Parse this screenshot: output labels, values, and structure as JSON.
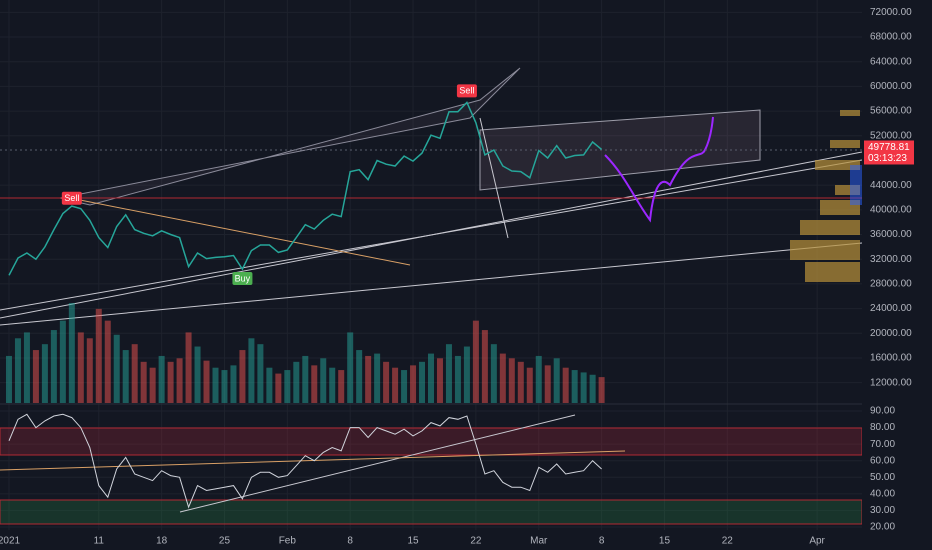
{
  "chart_data": {
    "type": "line",
    "x": [
      0,
      1,
      2,
      3,
      4,
      5,
      6,
      7,
      8,
      9,
      10,
      11,
      12,
      13,
      14,
      15,
      16,
      17,
      18,
      19,
      20,
      21,
      22,
      23,
      24,
      25,
      26,
      27,
      28,
      29,
      30,
      31,
      32,
      33,
      34,
      35,
      36,
      37,
      38,
      39,
      40,
      41,
      42,
      43,
      44,
      45,
      46,
      47,
      48,
      49,
      50,
      51,
      52,
      53,
      54,
      55,
      56,
      57,
      58,
      59,
      60,
      61,
      62,
      63,
      64,
      65,
      66
    ],
    "values": [
      29400,
      32200,
      33000,
      32000,
      34000,
      36800,
      39400,
      40600,
      40200,
      38300,
      35500,
      33900,
      37300,
      39200,
      36800,
      36200,
      35800,
      36600,
      36000,
      35500,
      30800,
      33000,
      32100,
      32300,
      32400,
      32600,
      30400,
      33400,
      34300,
      34300,
      33100,
      33500,
      35500,
      37600,
      36900,
      38300,
      39300,
      38900,
      46200,
      46500,
      44900,
      48000,
      47400,
      47100,
      48700,
      47900,
      49200,
      52100,
      51600,
      55900,
      55900,
      57400,
      54100,
      48900,
      49700,
      47100,
      46300,
      46200,
      45200,
      49600,
      48400,
      50400,
      48400,
      48800,
      48900,
      51000,
      49800
    ],
    "volume": [
      40,
      55,
      60,
      45,
      50,
      62,
      70,
      85,
      60,
      55,
      80,
      70,
      58,
      45,
      50,
      35,
      30,
      40,
      35,
      38,
      60,
      48,
      36,
      30,
      28,
      32,
      45,
      55,
      50,
      30,
      25,
      28,
      35,
      40,
      32,
      38,
      30,
      28,
      60,
      45,
      40,
      42,
      35,
      30,
      28,
      32,
      35,
      42,
      38,
      50,
      40,
      48,
      70,
      62,
      50,
      42,
      38,
      35,
      30,
      40,
      32,
      38,
      30,
      28,
      26,
      24,
      22
    ],
    "color": "#26a69a",
    "xlim": [
      -1,
      95
    ],
    "xticks": [
      {
        "value": 0,
        "label": "2021"
      },
      {
        "value": 10,
        "label": "11"
      },
      {
        "value": 17,
        "label": "18"
      },
      {
        "value": 24,
        "label": "25"
      },
      {
        "value": 31,
        "label": "Feb"
      },
      {
        "value": 38,
        "label": "8"
      },
      {
        "value": 45,
        "label": "15"
      },
      {
        "value": 52,
        "label": "22"
      },
      {
        "value": 59,
        "label": "Mar"
      },
      {
        "value": 66,
        "label": "8"
      },
      {
        "value": 73,
        "label": "15"
      },
      {
        "value": 80,
        "label": "22"
      },
      {
        "value": 90,
        "label": "Apr"
      }
    ],
    "ylim": [
      10000,
      74000
    ],
    "yticks": [
      {
        "value": 72000,
        "label": "72000.00"
      },
      {
        "value": 68000,
        "label": "68000.00"
      },
      {
        "value": 64000,
        "label": "64000.00"
      },
      {
        "value": 60000,
        "label": "60000.00"
      },
      {
        "value": 56000,
        "label": "56000.00"
      },
      {
        "value": 52000,
        "label": "52000.00"
      },
      {
        "value": 44000,
        "label": "44000.00"
      },
      {
        "value": 40000,
        "label": "40000.00"
      },
      {
        "value": 36000,
        "label": "36000.00"
      },
      {
        "value": 32000,
        "label": "32000.00"
      },
      {
        "value": 28000,
        "label": "28000.00"
      },
      {
        "value": 24000,
        "label": "24000.00"
      },
      {
        "value": 20000,
        "label": "20000.00"
      },
      {
        "value": 16000,
        "label": "16000.00"
      },
      {
        "value": 12000,
        "label": "12000.00"
      }
    ],
    "last_price": {
      "value": 49778.81,
      "label": "49778.81"
    },
    "countdown": "03:13:23",
    "signals": [
      {
        "x": 7,
        "value": 41800,
        "label": "Sell"
      },
      {
        "x": 26,
        "value": 28800,
        "label": "Buy"
      },
      {
        "x": 51,
        "value": 59200,
        "label": "Sell"
      }
    ],
    "rsi": {
      "values": [
        72,
        85,
        88,
        80,
        84,
        87,
        88,
        86,
        80,
        68,
        45,
        38,
        55,
        62,
        52,
        50,
        48,
        54,
        51,
        50,
        32,
        45,
        42,
        43,
        44,
        45,
        37,
        50,
        53,
        53,
        50,
        51,
        57,
        63,
        60,
        65,
        68,
        66,
        80,
        80,
        74,
        80,
        78,
        76,
        79,
        75,
        78,
        83,
        81,
        86,
        85,
        87,
        70,
        52,
        54,
        47,
        44,
        44,
        42,
        56,
        53,
        58,
        52,
        53,
        54,
        60,
        55
      ],
      "color": "#d1d4dc",
      "ylim": [
        20,
        90
      ],
      "yticks": [
        {
          "value": 90,
          "label": "90.00"
        },
        {
          "value": 80,
          "label": "80.00"
        },
        {
          "value": 70,
          "label": "70.00"
        },
        {
          "value": 60,
          "label": "60.00"
        },
        {
          "value": 50,
          "label": "50.00"
        },
        {
          "value": 40,
          "label": "40.00"
        },
        {
          "value": 30,
          "label": "30.00"
        },
        {
          "value": 20,
          "label": "20.00"
        }
      ]
    }
  }
}
